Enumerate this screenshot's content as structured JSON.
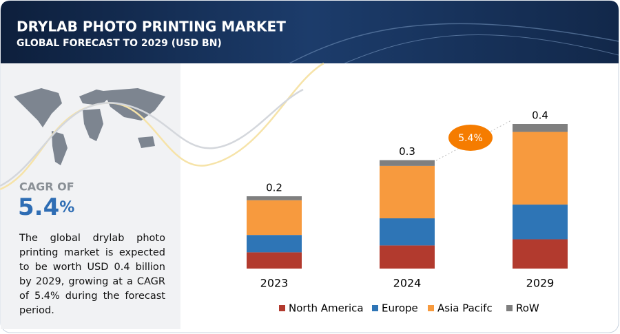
{
  "chart_data": {
    "type": "bar",
    "stacked": true,
    "title": "DRYLAB PHOTO PRINTING MARKET",
    "subtitle": "GLOBAL FORECAST TO 2029 (USD BN)",
    "categories": [
      "2023",
      "2024",
      "2029"
    ],
    "series": [
      {
        "name": "North America",
        "color": "#b23a2e",
        "values": [
          0.045,
          0.064,
          0.081
        ]
      },
      {
        "name": "Europe",
        "color": "#2e75b6",
        "values": [
          0.048,
          0.075,
          0.096
        ]
      },
      {
        "name": "Asia Pacifc",
        "color": "#f79a3e",
        "values": [
          0.096,
          0.145,
          0.201
        ]
      },
      {
        "name": "RoW",
        "color": "#7f7f7f",
        "values": [
          0.011,
          0.016,
          0.022
        ]
      }
    ],
    "totals": [
      0.2,
      0.3,
      0.4
    ],
    "annotation": "5.4%",
    "cagr_label": "CAGR OF",
    "cagr_value": "5.4",
    "cagr_unit": "%",
    "description": "The global drylab photo printing market is expected to be worth USD 0.4 billion by 2029, growing at a CAGR of 5.4% during the forecast period."
  }
}
